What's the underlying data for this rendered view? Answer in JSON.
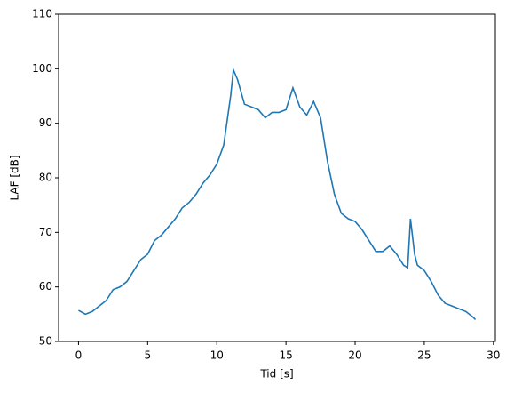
{
  "chart_data": {
    "type": "line",
    "xlabel": "Tid [s]",
    "ylabel": "LAF [dB]",
    "x": [
      0,
      0.5,
      1,
      1.5,
      2,
      2.5,
      3,
      3.5,
      4,
      4.5,
      5,
      5.5,
      6,
      6.5,
      7,
      7.5,
      8,
      8.5,
      9,
      9.5,
      10,
      10.5,
      11,
      11.2,
      11.5,
      12,
      12.5,
      13,
      13.5,
      14,
      14.5,
      15,
      15.5,
      16,
      16.5,
      17,
      17.5,
      18,
      18.5,
      19,
      19.5,
      20,
      20.5,
      21,
      21.5,
      22,
      22.5,
      23,
      23.5,
      23.8,
      24,
      24.3,
      24.5,
      25,
      25.5,
      26,
      26.5,
      27,
      27.5,
      28,
      28.5,
      28.7
    ],
    "series": [
      {
        "name": "LAF",
        "color": "#1f77b4",
        "values": [
          55.7,
          55,
          55.5,
          56.5,
          57.5,
          59.5,
          60,
          61,
          63,
          65,
          66,
          68.5,
          69.5,
          71,
          72.5,
          74.5,
          75.5,
          77,
          79,
          80.5,
          82.5,
          86,
          95,
          99.8,
          98,
          93.5,
          93,
          92.5,
          91,
          92,
          92,
          92.5,
          96.5,
          93,
          91.5,
          94,
          91,
          83,
          77,
          73.5,
          72.5,
          72,
          70.5,
          68.5,
          66.5,
          66.5,
          67.5,
          66,
          64,
          63.5,
          72.5,
          66,
          64,
          63,
          61,
          58.5,
          57,
          56.5,
          56,
          55.5,
          54.5,
          54
        ]
      }
    ],
    "xlim": [
      -1.44,
      30.14
    ],
    "xticks": [
      0,
      5,
      10,
      15,
      20,
      25,
      30
    ],
    "ylim": [
      50,
      110
    ],
    "yticks": [
      50,
      60,
      70,
      80,
      90,
      100,
      110
    ]
  }
}
